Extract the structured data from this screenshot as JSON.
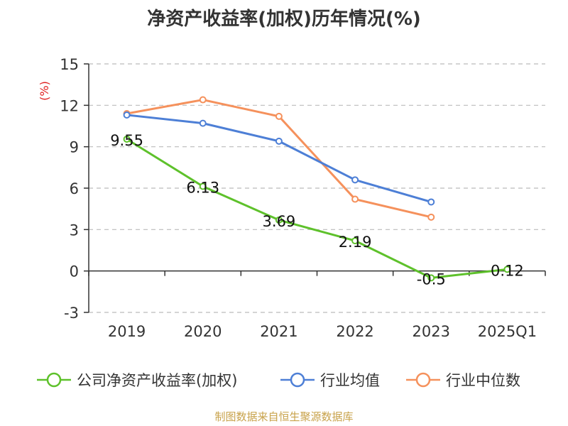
{
  "title": "净资产收益率(加权)历年情况(%)",
  "source": "制图数据来自恒生聚源数据库",
  "chart_data": {
    "type": "line",
    "title": "净资产收益率(加权)历年情况(%)",
    "ylabel": "(%)",
    "xlabel": "",
    "categories": [
      "2019",
      "2020",
      "2021",
      "2022",
      "2023",
      "2025Q1"
    ],
    "ylim": [
      -3,
      15
    ],
    "yticks": [
      15,
      12,
      9,
      6,
      3,
      0,
      -3
    ],
    "grid": true,
    "legend_position": "bottom",
    "series": [
      {
        "name": "公司净资产收益率(加权)",
        "color": "#5ec12b",
        "values": [
          9.55,
          6.13,
          3.69,
          2.19,
          -0.5,
          0.12
        ],
        "labels": [
          "9.55",
          "6.13",
          "3.69",
          "2.19",
          "-0.5",
          "0.12"
        ]
      },
      {
        "name": "行业均值",
        "color": "#4d7fd6",
        "values": [
          11.3,
          10.7,
          9.4,
          6.6,
          5.0,
          null
        ]
      },
      {
        "name": "行业中位数",
        "color": "#f5915c",
        "values": [
          11.4,
          12.4,
          11.2,
          5.2,
          3.9,
          null
        ]
      }
    ]
  }
}
